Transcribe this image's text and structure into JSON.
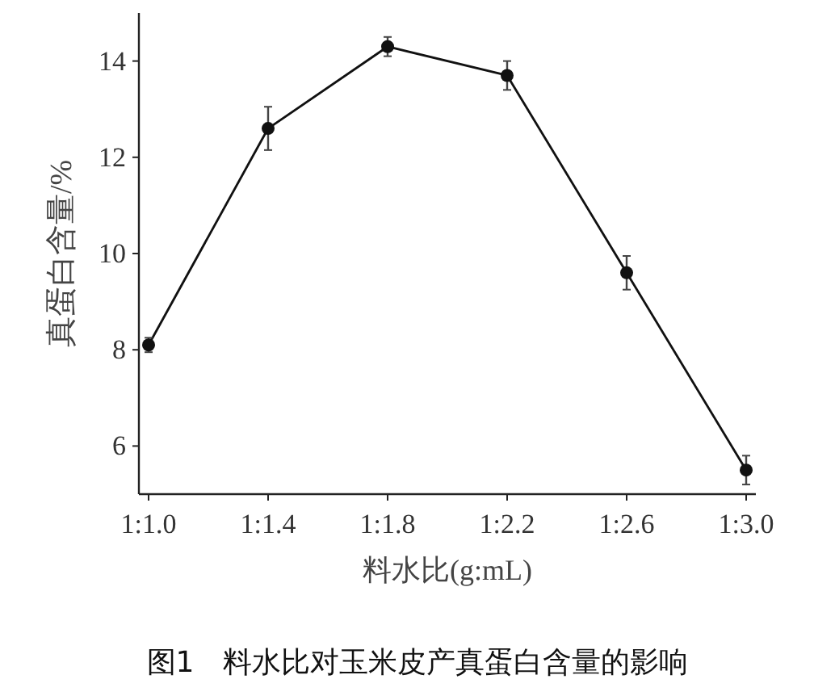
{
  "chart_data": {
    "type": "line",
    "title": "图1　料水比对玉米皮产真蛋白含量的影响",
    "xlabel": "料水比(g:mL)",
    "ylabel": "真蛋白含量/%",
    "categories": [
      "1:1.0",
      "1:1.4",
      "1:1.8",
      "1:2.2",
      "1:2.6",
      "1:3.0"
    ],
    "series": [
      {
        "color": "#111111",
        "values": [
          8.1,
          12.6,
          14.3,
          13.7,
          9.6,
          5.5
        ],
        "errors": [
          0.15,
          0.45,
          0.2,
          0.3,
          0.35,
          0.3
        ]
      }
    ],
    "ylim": [
      5,
      15
    ],
    "yticks": [
      6,
      8,
      10,
      12,
      14
    ],
    "grid": false,
    "marker": "circle",
    "line_style": "solid"
  }
}
